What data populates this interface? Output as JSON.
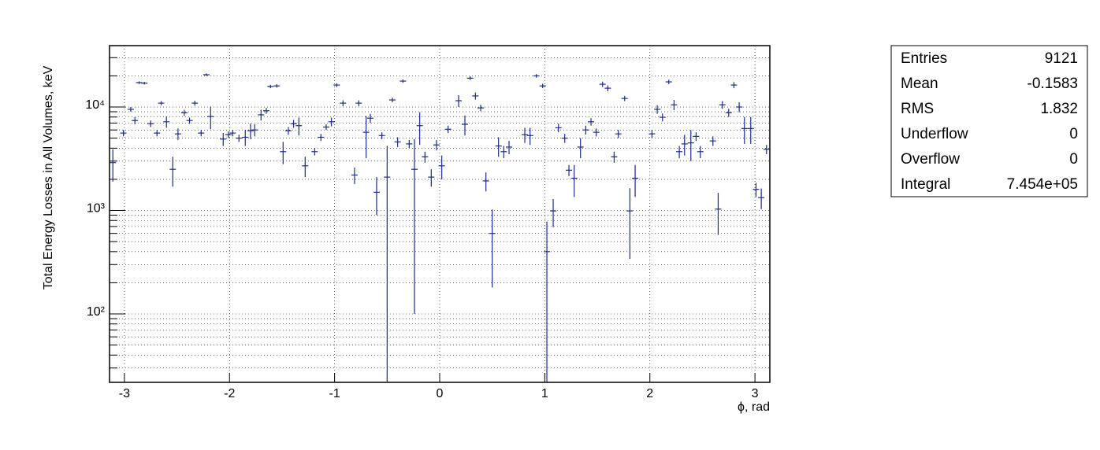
{
  "chart_data": {
    "type": "errorbar",
    "y_label": "Total Energy Losses in All Volumes, keV",
    "x_label": "ϕ, rad",
    "color": "#1c2a8a",
    "log_y": true,
    "grid": true,
    "xlim": [
      -3.1416,
      3.1416
    ],
    "ylim": [
      21.8,
      39200
    ],
    "xticks": [
      -3,
      -2,
      -1,
      0,
      1,
      2,
      3
    ],
    "yticks": [
      {
        "value": 100,
        "label": "10²"
      },
      {
        "value": 1000,
        "label": "10³"
      },
      {
        "value": 10000,
        "label": "10⁴"
      }
    ],
    "yminorticks": [
      30,
      40,
      50,
      60,
      70,
      80,
      90,
      200,
      300,
      400,
      500,
      600,
      700,
      800,
      900,
      2000,
      3000,
      4000,
      5000,
      6000,
      7000,
      8000,
      9000,
      20000,
      30000
    ],
    "x": [
      -3.11,
      -3.01,
      -2.94,
      -2.9,
      -2.86,
      -2.81,
      -2.75,
      -2.69,
      -2.65,
      -2.6,
      -2.54,
      -2.49,
      -2.43,
      -2.38,
      -2.33,
      -2.27,
      -2.22,
      -2.18,
      -2.06,
      -2.01,
      -1.97,
      -1.91,
      -1.85,
      -1.8,
      -1.76,
      -1.7,
      -1.65,
      -1.61,
      -1.55,
      -1.49,
      -1.44,
      -1.39,
      -1.34,
      -1.28,
      -1.19,
      -1.13,
      -1.08,
      -1.03,
      -0.98,
      -0.92,
      -0.81,
      -0.77,
      -0.7,
      -0.66,
      -0.6,
      -0.55,
      -0.5,
      -0.45,
      -0.4,
      -0.35,
      -0.29,
      -0.24,
      -0.19,
      -0.14,
      -0.08,
      -0.03,
      0.02,
      0.08,
      0.18,
      0.24,
      0.29,
      0.34,
      0.39,
      0.44,
      0.5,
      0.56,
      0.61,
      0.66,
      0.81,
      0.86,
      0.92,
      0.98,
      1.02,
      1.08,
      1.13,
      1.19,
      1.23,
      1.28,
      1.34,
      1.39,
      1.44,
      1.49,
      1.55,
      1.6,
      1.66,
      1.7,
      1.76,
      1.81,
      1.86,
      2.02,
      2.07,
      2.12,
      2.18,
      2.23,
      2.28,
      2.33,
      2.39,
      2.44,
      2.48,
      2.6,
      2.65,
      2.69,
      2.75,
      2.8,
      2.85,
      2.9,
      2.96,
      3.01,
      3.06,
      3.11
    ],
    "values": [
      2900,
      5600,
      9500,
      7400,
      17200,
      17000,
      6900,
      5600,
      10900,
      7200,
      2500,
      5500,
      8800,
      7400,
      10900,
      5600,
      20500,
      8100,
      4900,
      5400,
      5600,
      5000,
      5100,
      5900,
      6000,
      8400,
      9200,
      15800,
      16000,
      3700,
      5900,
      6900,
      6600,
      2700,
      3700,
      5100,
      6400,
      7200,
      16300,
      10900,
      2200,
      10900,
      5700,
      7800,
      1500,
      5300,
      2100,
      11700,
      4600,
      17800,
      4400,
      2500,
      6600,
      3300,
      2100,
      4300,
      2700,
      6100,
      11500,
      6800,
      19000,
      12800,
      9800,
      1930,
      600,
      4200,
      3700,
      4100,
      5400,
      5300,
      20000,
      16000,
      400,
      990,
      6300,
      5000,
      2450,
      2050,
      4100,
      6000,
      7200,
      5700,
      16600,
      15200,
      3300,
      5500,
      12100,
      990,
      2050,
      5500,
      9500,
      7960,
      17500,
      10500,
      3700,
      4400,
      4500,
      5200,
      3700,
      4700,
      1030,
      10500,
      8800,
      16300,
      10000,
      6200,
      6200,
      1600,
      1330,
      3900
    ],
    "errors": [
      1000,
      400,
      500,
      600,
      500,
      500,
      500,
      400,
      500,
      900,
      800,
      700,
      600,
      500,
      600,
      400,
      600,
      2000,
      700,
      400,
      400,
      400,
      900,
      1000,
      800,
      1000,
      600,
      600,
      600,
      900,
      500,
      600,
      1300,
      600,
      300,
      400,
      400,
      700,
      700,
      700,
      400,
      700,
      2500,
      800,
      600,
      400,
      2100,
      600,
      500,
      700,
      400,
      2400,
      2300,
      400,
      400,
      500,
      700,
      500,
      1500,
      1500,
      800,
      1000,
      700,
      400,
      420,
      900,
      500,
      600,
      900,
      1000,
      800,
      800,
      380,
      300,
      600,
      500,
      300,
      700,
      900,
      600,
      600,
      500,
      1000,
      1000,
      400,
      500,
      700,
      650,
      700,
      500,
      900,
      700,
      900,
      1200,
      500,
      1000,
      1500,
      500,
      500,
      500,
      450,
      900,
      800,
      1100,
      1100,
      1800,
      1800,
      250,
      300,
      400
    ]
  },
  "stats": {
    "rows": [
      {
        "label": "Entries",
        "value": "9121"
      },
      {
        "label": "Mean",
        "value": "-0.1583"
      },
      {
        "label": "RMS",
        "value": "1.832"
      },
      {
        "label": "Underflow",
        "value": "0"
      },
      {
        "label": "Overflow",
        "value": "0"
      },
      {
        "label": "Integral",
        "value": "7.454e+05"
      }
    ]
  }
}
